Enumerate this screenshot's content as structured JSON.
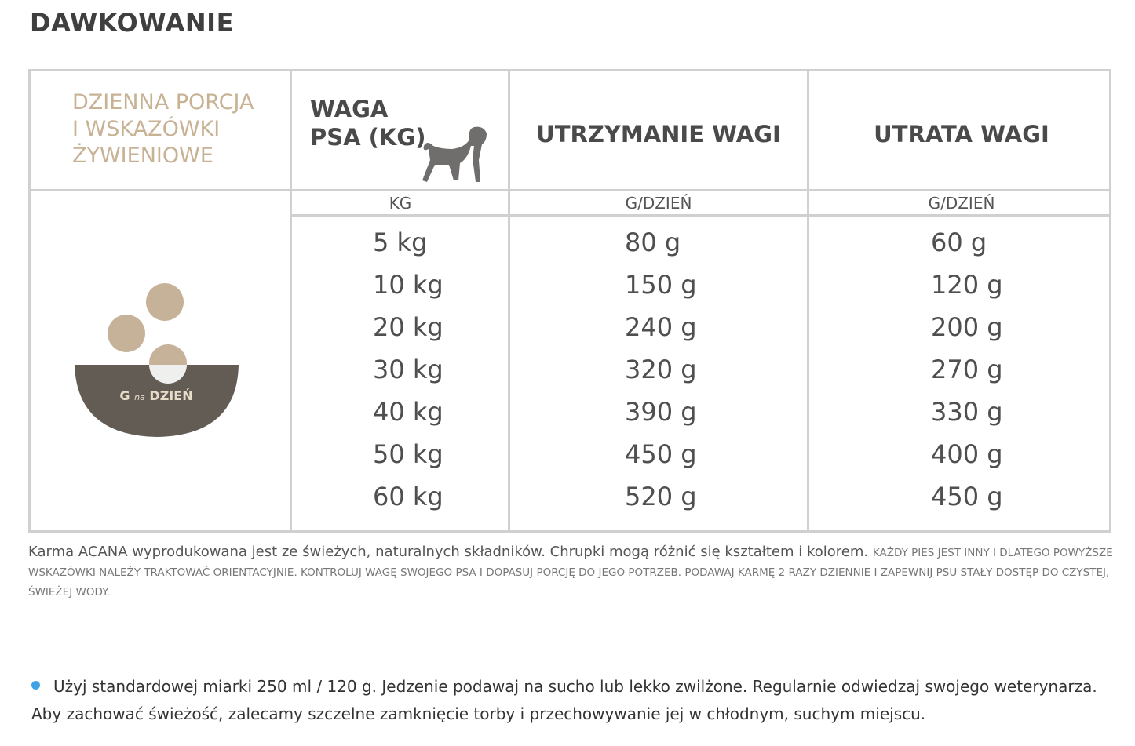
{
  "title": "DAWKOWANIE",
  "table": {
    "intro": [
      "DZIENNA PORCJA",
      "I WSKAZÓWKI",
      "ŻYWIENIOWE"
    ],
    "weight_header": [
      "WAGA",
      "PSA (KG)"
    ],
    "headers": [
      "UTRZYMANIE WAGI",
      "UTRATA WAGI"
    ],
    "units": [
      "KG",
      "G/DZIEŃ",
      "G/DZIEŃ"
    ],
    "bowl_label": [
      "G",
      "na",
      "DZIEŃ"
    ],
    "rows": [
      [
        "5 kg",
        "80 g",
        "60 g"
      ],
      [
        "10 kg",
        "150 g",
        "120 g"
      ],
      [
        "20 kg",
        "240 g",
        "200 g"
      ],
      [
        "30 kg",
        "320 g",
        "270 g"
      ],
      [
        "40 kg",
        "390 g",
        "330 g"
      ],
      [
        "50 kg",
        "450 g",
        "400 g"
      ],
      [
        "60 kg",
        "520 g",
        "450 g"
      ]
    ]
  },
  "note": {
    "lead": "Karma ACANA wyprodukowana jest ze świeżych, naturalnych składników. Chrupki mogą różnić się kształtem i kolorem.",
    "small": "KAŻDY PIES JEST INNY I DLATEGO POWYŻSZE WSKAZÓWKI NALEŻY TRAKTOWAĆ ORIENTACYJNIE. KONTROLUJ WAGĘ SWOJEGO PSA I DOPASUJ PORCJĘ DO JEGO POTRZEB. PODAWAJ KARMĘ 2 RAZY DZIENNIE I ZAPEWNIJ PSU STAŁY DOSTĘP DO CZYSTEJ, ŚWIEŻEJ WODY."
  },
  "tip": "Użyj standardowej miarki 250 ml / 120 g. Jedzenie podawaj na sucho lub lekko zwilżone. Regularnie odwiedzaj swojego weterynarza. Aby zachować świeżość, zalecamy szczelne zamknięcie torby i przechowywanie jej w chłodnym, suchym miejscu."
}
